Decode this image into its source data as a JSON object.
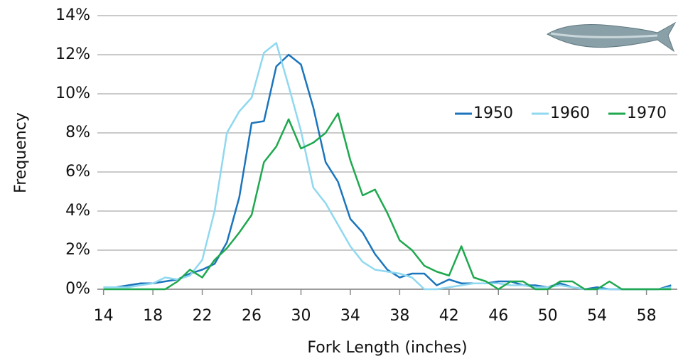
{
  "chart_data": {
    "type": "line",
    "x_label": "Fork Length (inches)",
    "y_label": "Frequency",
    "x": [
      14,
      15,
      16,
      17,
      18,
      19,
      20,
      21,
      22,
      23,
      24,
      25,
      26,
      27,
      28,
      29,
      30,
      31,
      32,
      33,
      34,
      35,
      36,
      37,
      38,
      39,
      40,
      41,
      42,
      43,
      44,
      45,
      46,
      47,
      48,
      49,
      50,
      51,
      52,
      53,
      54,
      55,
      56,
      57,
      58,
      59,
      60
    ],
    "series": [
      {
        "name": "1950",
        "color": "#1b75bc",
        "values": [
          0.1,
          0.1,
          0.2,
          0.3,
          0.3,
          0.4,
          0.5,
          0.8,
          1.0,
          1.3,
          2.4,
          4.7,
          8.5,
          8.6,
          11.4,
          12.0,
          11.5,
          9.3,
          6.5,
          5.5,
          3.6,
          2.9,
          1.8,
          1.0,
          0.6,
          0.8,
          0.8,
          0.2,
          0.5,
          0.3,
          0.3,
          0.3,
          0.4,
          0.4,
          0.2,
          0.2,
          0.1,
          0.3,
          0.1,
          0,
          0.1,
          0,
          0,
          0,
          0,
          0,
          0.2
        ]
      },
      {
        "name": "1960",
        "color": "#8fd8f0",
        "values": [
          0.1,
          0.1,
          0.1,
          0.2,
          0.3,
          0.6,
          0.5,
          0.7,
          1.5,
          4.0,
          8.0,
          9.1,
          9.8,
          12.1,
          12.6,
          10.4,
          8.1,
          5.2,
          4.4,
          3.3,
          2.2,
          1.4,
          1.0,
          0.9,
          0.8,
          0.6,
          0,
          0,
          0.1,
          0.2,
          0.3,
          0.3,
          0.3,
          0.2,
          0.2,
          0.1,
          0.1,
          0.2,
          0.1,
          0,
          0,
          0,
          0,
          0,
          0,
          0,
          0.1
        ]
      },
      {
        "name": "1970",
        "color": "#1fa84f",
        "values": [
          0,
          0,
          0,
          0,
          0,
          0,
          0.4,
          1.0,
          0.6,
          1.5,
          2.1,
          2.9,
          3.8,
          6.5,
          7.3,
          8.7,
          7.2,
          7.5,
          8.0,
          9.0,
          6.6,
          4.8,
          5.1,
          3.9,
          2.5,
          2.0,
          1.2,
          0.9,
          0.7,
          2.2,
          0.6,
          0.4,
          0,
          0.4,
          0.4,
          0,
          0,
          0.4,
          0.4,
          0,
          0,
          0.4,
          0,
          0,
          0,
          0,
          0
        ]
      }
    ],
    "xlim": [
      13.5,
      60.5
    ],
    "xticks": [
      14,
      18,
      22,
      26,
      30,
      34,
      38,
      42,
      46,
      50,
      54,
      58
    ],
    "ylim": [
      0,
      14
    ],
    "yticks": [
      {
        "value": 0,
        "label": "0%"
      },
      {
        "value": 2,
        "label": "2%"
      },
      {
        "value": 4,
        "label": "4%"
      },
      {
        "value": 6,
        "label": "6%"
      },
      {
        "value": 8,
        "label": "8%"
      },
      {
        "value": 10,
        "label": "10%"
      },
      {
        "value": 12,
        "label": "12%"
      },
      {
        "value": 14,
        "label": "14%"
      }
    ],
    "grid": true,
    "legend": "right"
  }
}
